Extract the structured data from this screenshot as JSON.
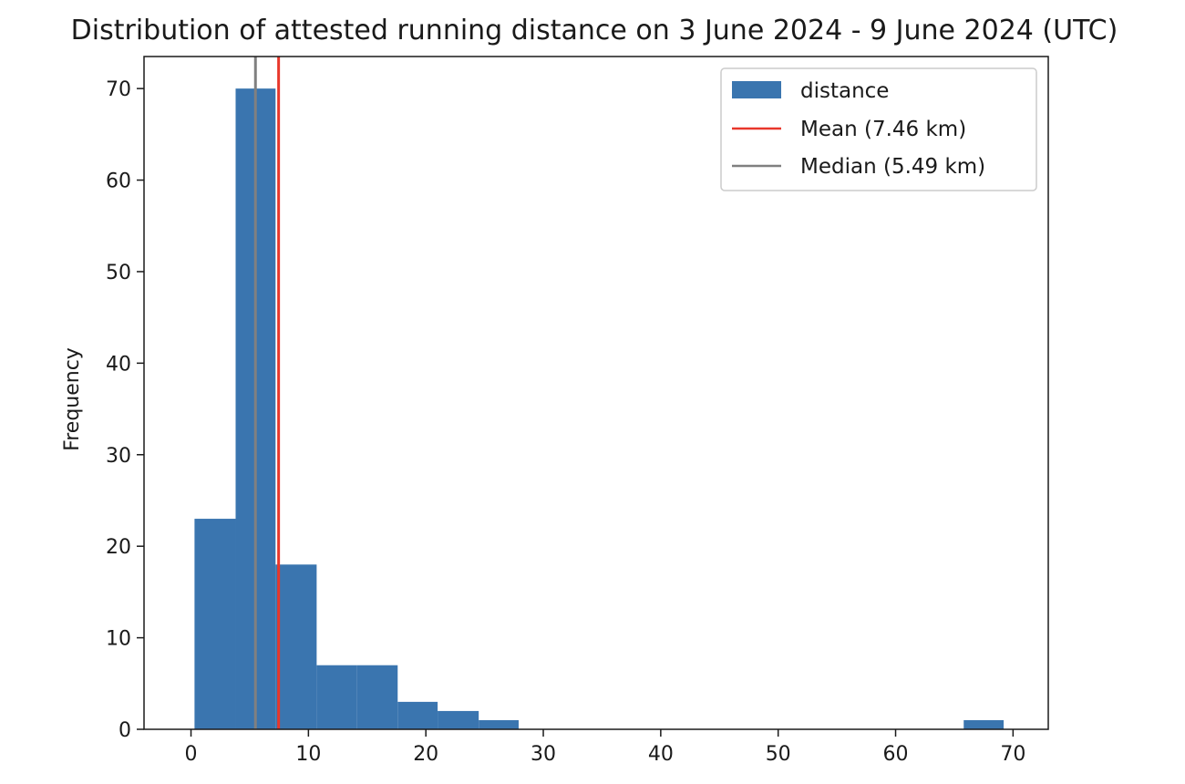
{
  "chart_data": {
    "type": "bar",
    "title": "Distribution of attested running distance on 3 June 2024 - 9 June 2024 (UTC)",
    "xlabel": "",
    "ylabel": "Frequency",
    "xlim": [
      -4,
      73
    ],
    "ylim": [
      0,
      73.5
    ],
    "xticks": [
      0,
      10,
      20,
      30,
      40,
      50,
      60,
      70
    ],
    "yticks": [
      0,
      10,
      20,
      30,
      40,
      50,
      60,
      70
    ],
    "grid": false,
    "legend_position": "upper right",
    "series": [
      {
        "name": "distance",
        "color": "#3a75af",
        "bins": [
          {
            "start": 0.3,
            "end": 3.8,
            "count": 23
          },
          {
            "start": 3.8,
            "end": 7.2,
            "count": 70
          },
          {
            "start": 7.2,
            "end": 10.7,
            "count": 18
          },
          {
            "start": 10.7,
            "end": 14.1,
            "count": 7
          },
          {
            "start": 14.1,
            "end": 17.6,
            "count": 7
          },
          {
            "start": 17.6,
            "end": 21.0,
            "count": 3
          },
          {
            "start": 21.0,
            "end": 24.5,
            "count": 2
          },
          {
            "start": 24.5,
            "end": 27.9,
            "count": 1
          },
          {
            "start": 27.9,
            "end": 31.4,
            "count": 0
          },
          {
            "start": 31.4,
            "end": 34.8,
            "count": 0
          },
          {
            "start": 34.8,
            "end": 38.3,
            "count": 0
          },
          {
            "start": 38.3,
            "end": 41.7,
            "count": 0
          },
          {
            "start": 41.7,
            "end": 45.2,
            "count": 0
          },
          {
            "start": 45.2,
            "end": 48.6,
            "count": 0
          },
          {
            "start": 48.6,
            "end": 52.1,
            "count": 0
          },
          {
            "start": 52.1,
            "end": 55.5,
            "count": 0
          },
          {
            "start": 55.5,
            "end": 59.0,
            "count": 0
          },
          {
            "start": 59.0,
            "end": 62.4,
            "count": 0
          },
          {
            "start": 62.4,
            "end": 65.8,
            "count": 0
          },
          {
            "start": 65.8,
            "end": 69.2,
            "count": 1
          }
        ]
      }
    ],
    "reference_lines": [
      {
        "name": "Mean (7.46 km)",
        "x": 7.46,
        "color": "#e8372b"
      },
      {
        "name": "Median (5.49 km)",
        "x": 5.49,
        "color": "#808080"
      }
    ]
  }
}
